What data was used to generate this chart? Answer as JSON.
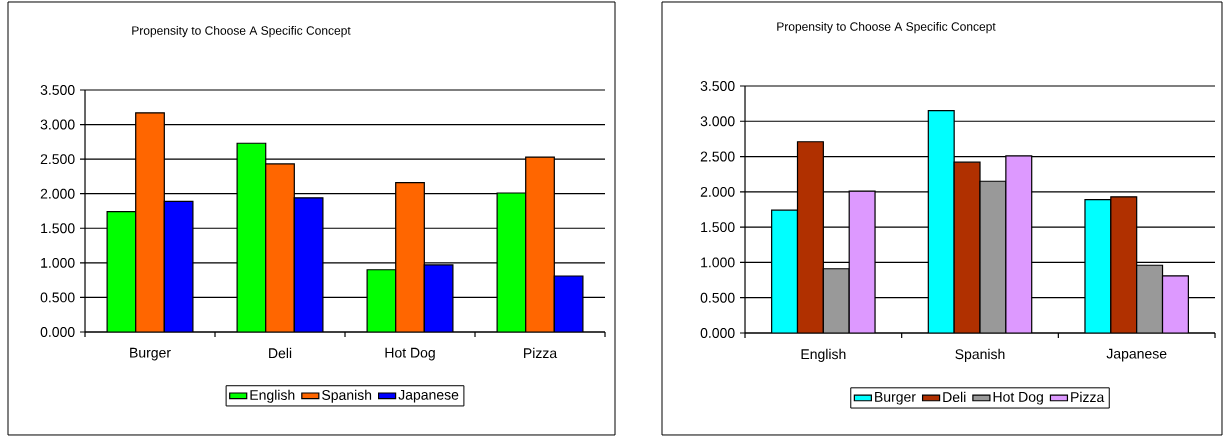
{
  "chart_data": [
    {
      "type": "bar",
      "title": "Propensity to Choose A Specific Concept",
      "categories": [
        "Burger",
        "Deli",
        "Hot Dog",
        "Pizza"
      ],
      "series": [
        {
          "name": "English",
          "color": "#00ff00",
          "values": [
            1.74,
            2.73,
            0.9,
            2.01
          ]
        },
        {
          "name": "Spanish",
          "color": "#ff6600",
          "values": [
            3.17,
            2.43,
            2.16,
            2.53
          ]
        },
        {
          "name": "Japanese",
          "color": "#0000ff",
          "values": [
            1.89,
            1.94,
            0.97,
            0.81
          ]
        }
      ],
      "ylim": [
        0,
        3.5
      ],
      "yticks": [
        {
          "value": 0,
          "label": "0.000"
        },
        {
          "value": 0.5,
          "label": "0.500"
        },
        {
          "value": 1,
          "label": "1.000"
        },
        {
          "value": 1.5,
          "label": "1.500"
        },
        {
          "value": 2,
          "label": "2.000"
        },
        {
          "value": 2.5,
          "label": "2.500"
        },
        {
          "value": 3,
          "label": "3.000"
        },
        {
          "value": 3.5,
          "label": "3.500"
        }
      ],
      "grid": "y",
      "legend": "bottom"
    },
    {
      "type": "bar",
      "title": "Propensity to Choose A Specific Concept",
      "categories": [
        "English",
        "Spanish",
        "Japanese"
      ],
      "series": [
        {
          "name": "Burger",
          "color": "#00ffff",
          "values": [
            1.74,
            3.15,
            1.89
          ]
        },
        {
          "name": "Deli",
          "color": "#b03000",
          "values": [
            2.71,
            2.42,
            1.93
          ]
        },
        {
          "name": "Hot Dog",
          "color": "#999999",
          "values": [
            0.91,
            2.15,
            0.96
          ]
        },
        {
          "name": "Pizza",
          "color": "#dd99ff",
          "values": [
            2.01,
            2.51,
            0.81
          ]
        }
      ],
      "ylim": [
        0,
        3.5
      ],
      "yticks": [
        {
          "value": 0,
          "label": "0.000"
        },
        {
          "value": 0.5,
          "label": "0.500"
        },
        {
          "value": 1,
          "label": "1.000"
        },
        {
          "value": 1.5,
          "label": "1.500"
        },
        {
          "value": 2,
          "label": "2.000"
        },
        {
          "value": 2.5,
          "label": "2.500"
        },
        {
          "value": 3,
          "label": "3.000"
        },
        {
          "value": 3.5,
          "label": "3.500"
        }
      ],
      "grid": "y",
      "legend": "bottom"
    }
  ]
}
